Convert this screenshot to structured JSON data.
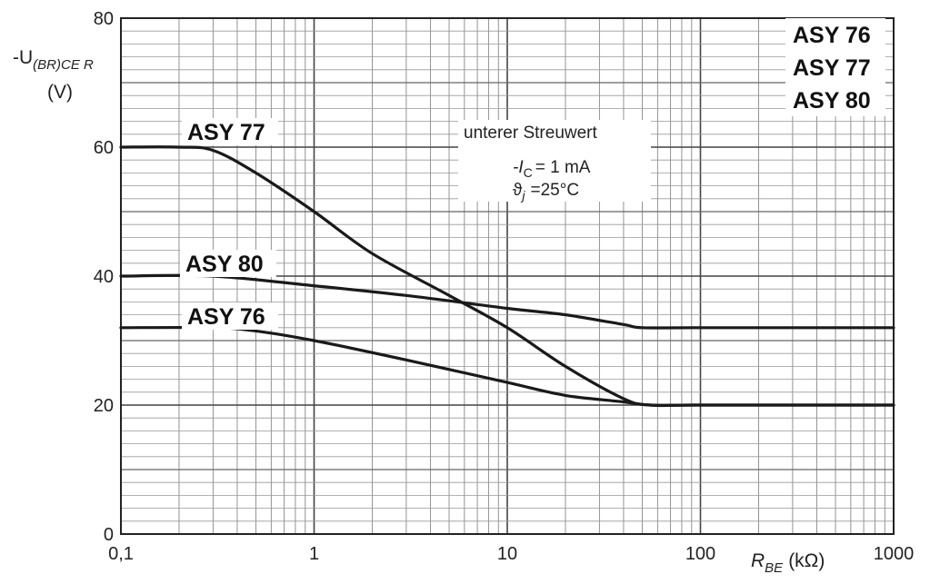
{
  "chart_data": {
    "type": "line",
    "x_scale": "log",
    "xlim": [
      0.1,
      1000
    ],
    "ylim": [
      0,
      80
    ],
    "grid": true,
    "x_ticks": [
      "0,1",
      "1",
      "10",
      "100",
      "1000"
    ],
    "y_ticks": [
      "0",
      "20",
      "40",
      "60",
      "80"
    ],
    "ylabel": {
      "main": "-U",
      "sub": "(BR)CE R",
      "unit": "(V)"
    },
    "xlabel": {
      "main": "R",
      "sub": "BE",
      "unit": "(kΩ)"
    },
    "titles": [
      "ASY 76",
      "ASY 77",
      "ASY 80"
    ],
    "annotations": {
      "line1": "unterer Streuwert",
      "ic_prefix": "-I",
      "ic_sub": "C",
      "ic_value": "= 1 mA",
      "tj_prefix": "ϑ",
      "tj_sub": "j",
      "tj_value": "=25°C"
    },
    "series": [
      {
        "name": "ASY 77",
        "x": [
          0.1,
          0.2,
          0.3,
          0.5,
          1,
          2,
          5,
          10,
          20,
          40,
          55,
          100,
          1000
        ],
        "y": [
          60,
          60,
          59.5,
          56,
          50,
          43.5,
          37,
          32,
          26,
          21,
          20,
          20,
          20
        ]
      },
      {
        "name": "ASY 80",
        "x": [
          0.1,
          0.3,
          1,
          3,
          10,
          20,
          40,
          50,
          100,
          1000
        ],
        "y": [
          40,
          40,
          38.5,
          37,
          35,
          34,
          32.5,
          32,
          32,
          32
        ]
      },
      {
        "name": "ASY 76",
        "x": [
          0.1,
          0.3,
          0.5,
          1,
          3,
          10,
          20,
          40,
          55,
          100,
          1000
        ],
        "y": [
          32,
          32,
          31.5,
          30,
          27,
          23.5,
          21.5,
          20.5,
          20,
          20,
          20
        ]
      }
    ]
  }
}
